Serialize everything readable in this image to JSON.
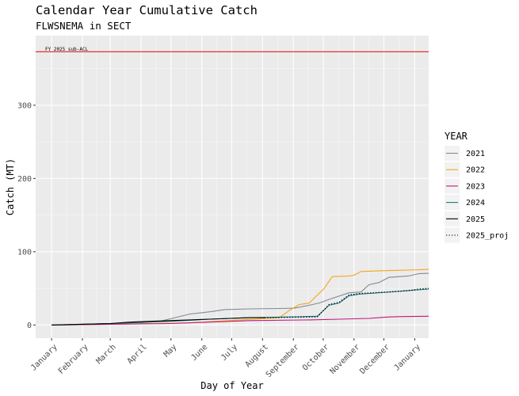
{
  "chart_data": {
    "type": "line",
    "title": "Calendar Year Cumulative Catch",
    "subtitle": "FLWSNEMA in SECT",
    "xlabel": "Day of Year",
    "ylabel": "Catch (MT)",
    "xlim": [
      -15,
      380
    ],
    "ylim": [
      -18,
      395
    ],
    "yticks": [
      0,
      100,
      200,
      300
    ],
    "xticks": [
      {
        "day": 1,
        "label": "January"
      },
      {
        "day": 32,
        "label": "February"
      },
      {
        "day": 60,
        "label": "March"
      },
      {
        "day": 91,
        "label": "April"
      },
      {
        "day": 121,
        "label": "May"
      },
      {
        "day": 152,
        "label": "June"
      },
      {
        "day": 182,
        "label": "July"
      },
      {
        "day": 213,
        "label": "August"
      },
      {
        "day": 244,
        "label": "September"
      },
      {
        "day": 274,
        "label": "October"
      },
      {
        "day": 305,
        "label": "November"
      },
      {
        "day": 335,
        "label": "December"
      },
      {
        "day": 366,
        "label": "January"
      }
    ],
    "reference_line": {
      "value": 373,
      "label": "FY 2025 sub-ACL",
      "color": "#e8322a"
    },
    "legend": {
      "title": "YEAR",
      "placement": "right"
    },
    "grid": true,
    "series": [
      {
        "name": "2021",
        "color": "#7f8a99",
        "dash": "solid",
        "points": [
          [
            1,
            0
          ],
          [
            60,
            2
          ],
          [
            90,
            3
          ],
          [
            110,
            5
          ],
          [
            125,
            10
          ],
          [
            140,
            15
          ],
          [
            160,
            18
          ],
          [
            175,
            21
          ],
          [
            200,
            22
          ],
          [
            230,
            22.5
          ],
          [
            245,
            23
          ],
          [
            260,
            27
          ],
          [
            270,
            30
          ],
          [
            280,
            35
          ],
          [
            300,
            44
          ],
          [
            312,
            45
          ],
          [
            320,
            55
          ],
          [
            330,
            58
          ],
          [
            340,
            65
          ],
          [
            360,
            67
          ],
          [
            370,
            70
          ],
          [
            380,
            70.5
          ]
        ]
      },
      {
        "name": "2022",
        "color": "#f5a51b",
        "dash": "solid",
        "points": [
          [
            1,
            0
          ],
          [
            60,
            1
          ],
          [
            140,
            3
          ],
          [
            230,
            10
          ],
          [
            240,
            20
          ],
          [
            250,
            28
          ],
          [
            260,
            30
          ],
          [
            275,
            50
          ],
          [
            283,
            66
          ],
          [
            300,
            67
          ],
          [
            305,
            68
          ],
          [
            312,
            73
          ],
          [
            330,
            74
          ],
          [
            360,
            75
          ],
          [
            380,
            76
          ]
        ]
      },
      {
        "name": "2023",
        "color": "#c2187e",
        "dash": "solid",
        "points": [
          [
            1,
            0
          ],
          [
            60,
            1
          ],
          [
            120,
            2
          ],
          [
            160,
            4
          ],
          [
            200,
            6
          ],
          [
            260,
            7
          ],
          [
            290,
            8
          ],
          [
            320,
            9
          ],
          [
            330,
            10
          ],
          [
            340,
            11
          ],
          [
            355,
            11.5
          ],
          [
            380,
            12
          ]
        ]
      },
      {
        "name": "2024",
        "color": "#137b7b",
        "dash": "solid",
        "points": [
          [
            1,
            0
          ],
          [
            60,
            2
          ],
          [
            120,
            5
          ],
          [
            160,
            8
          ],
          [
            200,
            10
          ],
          [
            240,
            11
          ],
          [
            268,
            12
          ],
          [
            280,
            27
          ],
          [
            290,
            30
          ],
          [
            300,
            40
          ],
          [
            310,
            42
          ],
          [
            380,
            49
          ]
        ]
      },
      {
        "name": "2025",
        "color": "#000000",
        "dash": "solid",
        "points": [
          [
            1,
            0
          ],
          [
            30,
            1
          ],
          [
            60,
            2
          ],
          [
            80,
            4
          ],
          [
            100,
            5
          ],
          [
            120,
            6
          ],
          [
            140,
            7
          ],
          [
            160,
            8
          ],
          [
            180,
            9
          ],
          [
            200,
            10
          ],
          [
            215,
            10
          ]
        ]
      },
      {
        "name": "2025_proj",
        "color": "#000000",
        "dash": "dotted",
        "points": [
          [
            215,
            10
          ],
          [
            240,
            10.5
          ],
          [
            268,
            11
          ],
          [
            280,
            28
          ],
          [
            290,
            31
          ],
          [
            300,
            41
          ],
          [
            310,
            43
          ],
          [
            340,
            45
          ],
          [
            360,
            47
          ],
          [
            370,
            49
          ],
          [
            380,
            50
          ]
        ]
      }
    ]
  }
}
